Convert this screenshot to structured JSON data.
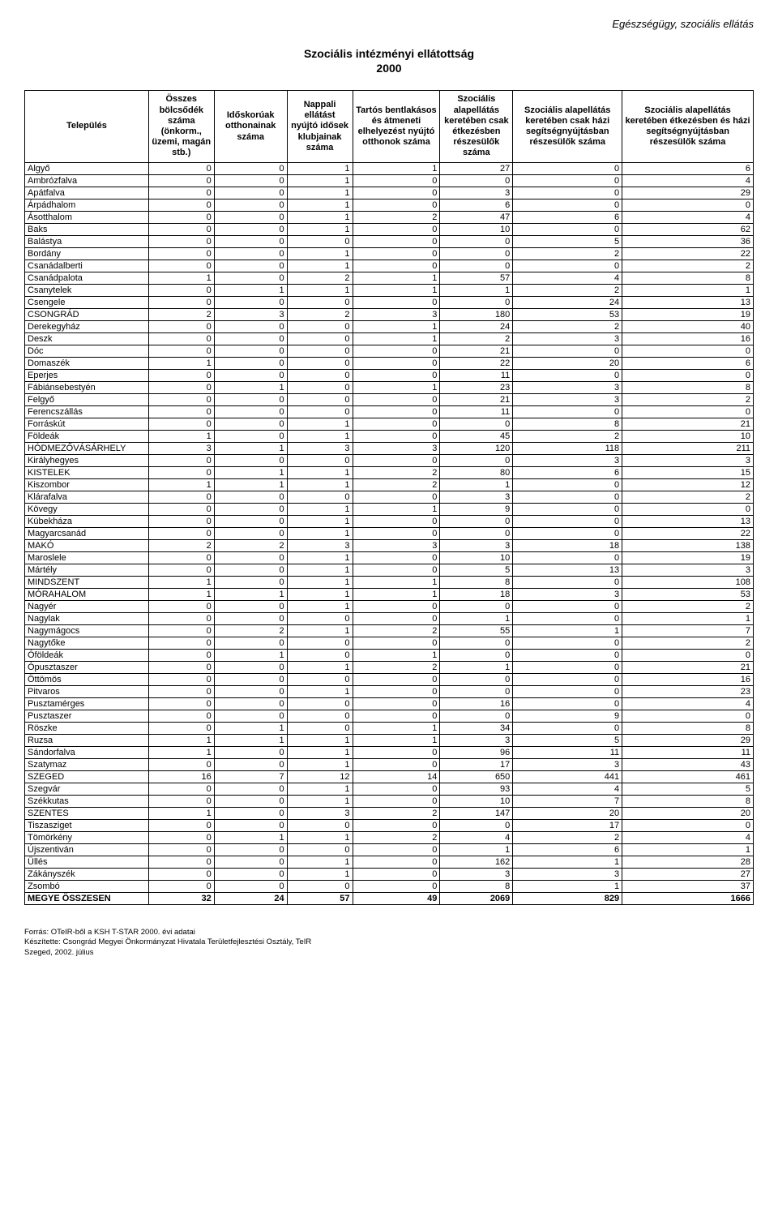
{
  "page": {
    "category": "Egészségügy, szociális ellátás",
    "title_line1": "Szociális intézményi ellátottság",
    "title_line2": "2000"
  },
  "table": {
    "columns": [
      "Település",
      "Összes bölcsődék száma (önkorm., üzemi, magán stb.)",
      "Időskorúak otthonainak száma",
      "Nappali ellátást nyújtó idősek klubjainak száma",
      "Tartós bentlakásos és átmeneti elhelyezést nyújtó otthonok száma",
      "Szociális alapellátás keretében csak étkezésben részesülők száma",
      "Szociális alapellátás keretében csak házi segítségnyújtásban részesülők száma",
      "Szociális alapellátás keretében étkezésben és házi segítségnyújtásban részesülők száma"
    ],
    "rows": [
      [
        "Algyő",
        0,
        0,
        1,
        1,
        27,
        0,
        6
      ],
      [
        "Ambrózfalva",
        0,
        0,
        1,
        0,
        0,
        0,
        4
      ],
      [
        "Apátfalva",
        0,
        0,
        1,
        0,
        3,
        0,
        29
      ],
      [
        "Árpádhalom",
        0,
        0,
        1,
        0,
        6,
        0,
        0
      ],
      [
        "Ásotthalom",
        0,
        0,
        1,
        2,
        47,
        6,
        4
      ],
      [
        "Baks",
        0,
        0,
        1,
        0,
        10,
        0,
        62
      ],
      [
        "Balástya",
        0,
        0,
        0,
        0,
        0,
        5,
        36
      ],
      [
        "Bordány",
        0,
        0,
        1,
        0,
        0,
        2,
        22
      ],
      [
        "Csanádalberti",
        0,
        0,
        1,
        0,
        0,
        0,
        2
      ],
      [
        "Csanádpalota",
        1,
        0,
        2,
        1,
        57,
        4,
        8
      ],
      [
        "Csanytelek",
        0,
        1,
        1,
        1,
        1,
        2,
        1
      ],
      [
        "Csengele",
        0,
        0,
        0,
        0,
        0,
        24,
        13
      ],
      [
        "CSONGRÁD",
        2,
        3,
        2,
        3,
        180,
        53,
        19
      ],
      [
        "Derekegyház",
        0,
        0,
        0,
        1,
        24,
        2,
        40
      ],
      [
        "Deszk",
        0,
        0,
        0,
        1,
        2,
        3,
        16
      ],
      [
        "Dóc",
        0,
        0,
        0,
        0,
        21,
        0,
        0
      ],
      [
        "Domaszék",
        1,
        0,
        0,
        0,
        22,
        20,
        6
      ],
      [
        "Eperjes",
        0,
        0,
        0,
        0,
        11,
        0,
        0
      ],
      [
        "Fábiánsebestyén",
        0,
        1,
        0,
        1,
        23,
        3,
        8
      ],
      [
        "Felgyő",
        0,
        0,
        0,
        0,
        21,
        3,
        2
      ],
      [
        "Ferencszállás",
        0,
        0,
        0,
        0,
        11,
        0,
        0
      ],
      [
        "Forráskút",
        0,
        0,
        1,
        0,
        0,
        8,
        21
      ],
      [
        "Földeák",
        1,
        0,
        1,
        0,
        45,
        2,
        10
      ],
      [
        "HÓDMEZŐVÁSÁRHELY",
        3,
        1,
        3,
        3,
        120,
        118,
        211
      ],
      [
        "Királyhegyes",
        0,
        0,
        0,
        0,
        0,
        3,
        3
      ],
      [
        "KISTELEK",
        0,
        1,
        1,
        2,
        80,
        6,
        15
      ],
      [
        "Kiszombor",
        1,
        1,
        1,
        2,
        1,
        0,
        12
      ],
      [
        "Klárafalva",
        0,
        0,
        0,
        0,
        3,
        0,
        2
      ],
      [
        "Kövegy",
        0,
        0,
        1,
        1,
        9,
        0,
        0
      ],
      [
        "Kübekháza",
        0,
        0,
        1,
        0,
        0,
        0,
        13
      ],
      [
        "Magyarcsanád",
        0,
        0,
        1,
        0,
        0,
        0,
        22
      ],
      [
        "MAKÓ",
        2,
        2,
        3,
        3,
        3,
        18,
        138
      ],
      [
        "Maroslele",
        0,
        0,
        1,
        0,
        10,
        0,
        19
      ],
      [
        "Mártély",
        0,
        0,
        1,
        0,
        5,
        13,
        3
      ],
      [
        "MINDSZENT",
        1,
        0,
        1,
        1,
        8,
        0,
        108
      ],
      [
        "MÓRAHALOM",
        1,
        1,
        1,
        1,
        18,
        3,
        53
      ],
      [
        "Nagyér",
        0,
        0,
        1,
        0,
        0,
        0,
        2
      ],
      [
        "Nagylak",
        0,
        0,
        0,
        0,
        1,
        0,
        1
      ],
      [
        "Nagymágocs",
        0,
        2,
        1,
        2,
        55,
        1,
        7
      ],
      [
        "Nagytőke",
        0,
        0,
        0,
        0,
        0,
        0,
        2
      ],
      [
        "Óföldeák",
        0,
        1,
        0,
        1,
        0,
        0,
        0
      ],
      [
        "Ópusztaszer",
        0,
        0,
        1,
        2,
        1,
        0,
        21
      ],
      [
        "Öttömös",
        0,
        0,
        0,
        0,
        0,
        0,
        16
      ],
      [
        "Pitvaros",
        0,
        0,
        1,
        0,
        0,
        0,
        23
      ],
      [
        "Pusztamérges",
        0,
        0,
        0,
        0,
        16,
        0,
        4
      ],
      [
        "Pusztaszer",
        0,
        0,
        0,
        0,
        0,
        9,
        0
      ],
      [
        "Röszke",
        0,
        1,
        0,
        1,
        34,
        0,
        8
      ],
      [
        "Ruzsa",
        1,
        1,
        1,
        1,
        3,
        5,
        29
      ],
      [
        "Sándorfalva",
        1,
        0,
        1,
        0,
        96,
        11,
        11
      ],
      [
        "Szatymaz",
        0,
        0,
        1,
        0,
        17,
        3,
        43
      ],
      [
        "SZEGED",
        16,
        7,
        12,
        14,
        650,
        441,
        461
      ],
      [
        "Szegvár",
        0,
        0,
        1,
        0,
        93,
        4,
        5
      ],
      [
        "Székkutas",
        0,
        0,
        1,
        0,
        10,
        7,
        8
      ],
      [
        "SZENTES",
        1,
        0,
        3,
        2,
        147,
        20,
        20
      ],
      [
        "Tiszasziget",
        0,
        0,
        0,
        0,
        0,
        17,
        0
      ],
      [
        "Tömörkény",
        0,
        1,
        1,
        2,
        4,
        2,
        4
      ],
      [
        "Újszentiván",
        0,
        0,
        0,
        0,
        1,
        6,
        1
      ],
      [
        "Üllés",
        0,
        0,
        1,
        0,
        162,
        1,
        28
      ],
      [
        "Zákányszék",
        0,
        0,
        1,
        0,
        3,
        3,
        27
      ],
      [
        "Zsombó",
        0,
        0,
        0,
        0,
        8,
        1,
        37
      ]
    ],
    "total_row": [
      "MEGYE ÖSSZESEN",
      32,
      24,
      57,
      49,
      2069,
      829,
      1666
    ]
  },
  "footer": {
    "line1": "Forrás: OTeIR-ből a KSH T-STAR 2000. évi adatai",
    "line2": "Készítette: Csongrád Megyei Önkormányzat Hivatala Területfejlesztési Osztály, TeIR",
    "line3": "Szeged, 2002. július"
  },
  "style": {
    "background_color": "#ffffff",
    "text_color": "#000000",
    "border_color": "#000000",
    "header_fontsize": 11,
    "body_fontsize": 11,
    "title_fontsize": 14,
    "footer_fontsize": 9.5
  }
}
